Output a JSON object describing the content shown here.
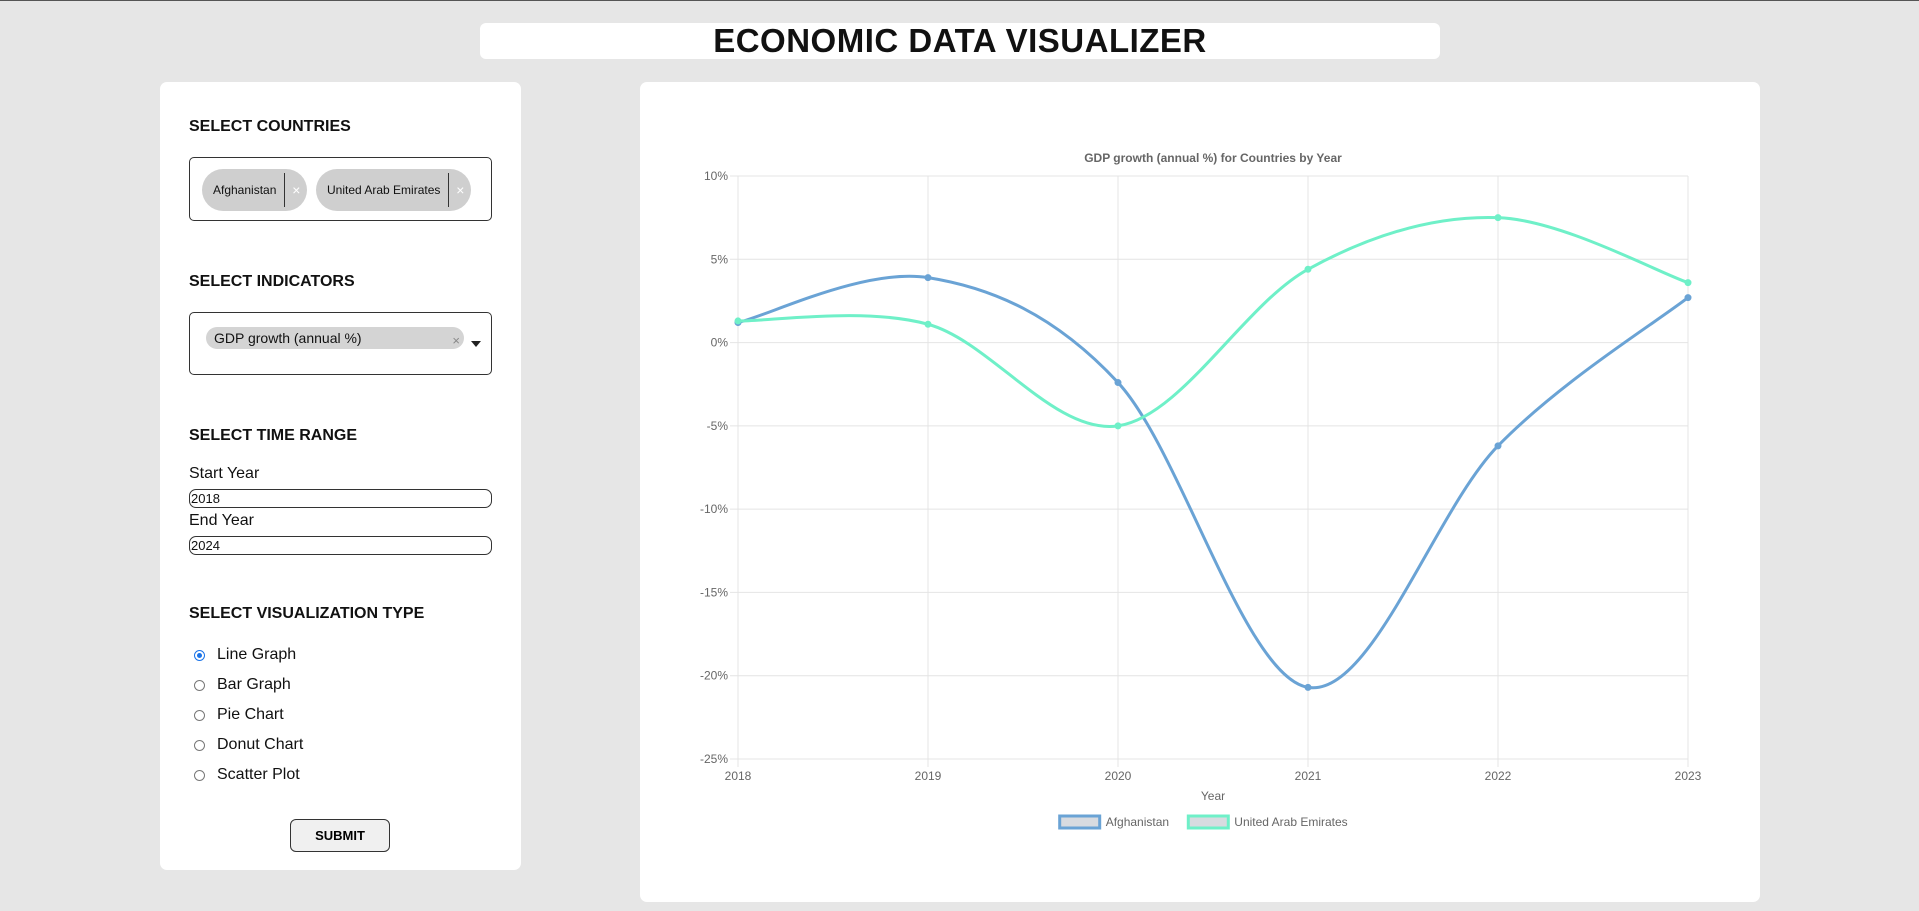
{
  "header": {
    "title": "ECONOMIC DATA VISUALIZER"
  },
  "countries": {
    "heading": "SELECT COUNTRIES",
    "selected": [
      "Afghanistan",
      "United Arab Emirates"
    ],
    "remove_glyph": "×"
  },
  "indicators": {
    "heading": "SELECT INDICATORS",
    "selected": "GDP growth (annual %)",
    "remove_glyph": "×"
  },
  "time_range": {
    "heading": "SELECT TIME RANGE",
    "start_label": "Start Year",
    "start_value": "2018",
    "end_label": "End Year",
    "end_value": "2024"
  },
  "viz_type": {
    "heading": "SELECT VISUALIZATION TYPE",
    "options": [
      "Line Graph",
      "Bar Graph",
      "Pie Chart",
      "Donut Chart",
      "Scatter Plot"
    ],
    "selected": "Line Graph"
  },
  "submit_label": "SUBMIT",
  "chart_data": {
    "type": "line",
    "title": "GDP growth (annual %) for Countries by Year",
    "xlabel": "Year",
    "ylabel": "",
    "x": [
      "2018",
      "2019",
      "2020",
      "2021",
      "2022",
      "2023"
    ],
    "ylim": [
      -25,
      10
    ],
    "yticks": [
      10,
      5,
      0,
      -5,
      -10,
      -15,
      -20,
      -25
    ],
    "ytick_labels": [
      "10%",
      "5%",
      "0%",
      "-5%",
      "-10%",
      "-15%",
      "-20%",
      "-25%"
    ],
    "grid": true,
    "legend": "bottom",
    "series": [
      {
        "name": "Afghanistan",
        "color": "#6aa3d5",
        "values": [
          1.2,
          3.9,
          -2.4,
          -20.7,
          -6.2,
          2.7
        ]
      },
      {
        "name": "United Arab Emirates",
        "color": "#6ff0c8",
        "values": [
          1.3,
          1.1,
          -5.0,
          4.4,
          7.5,
          3.6
        ]
      }
    ]
  }
}
